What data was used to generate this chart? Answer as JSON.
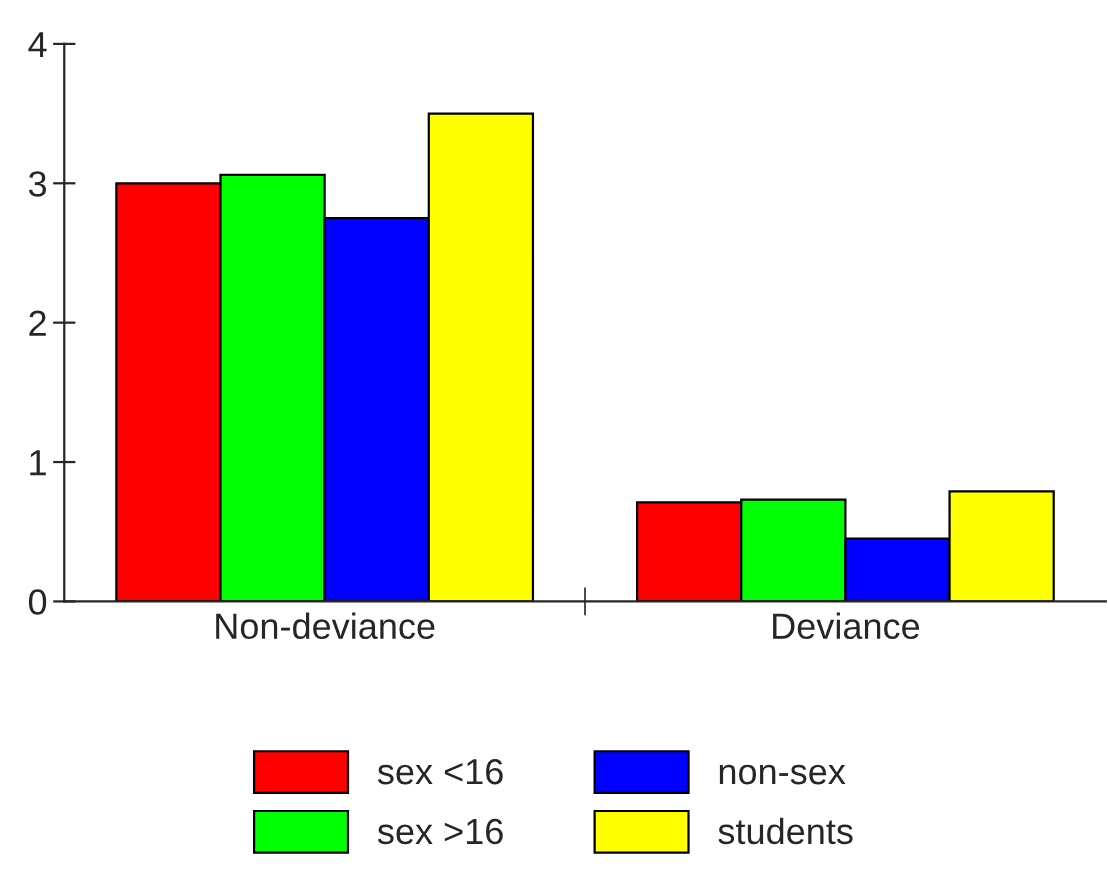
{
  "chart_data": {
    "type": "bar",
    "categories": [
      "Non-deviance",
      "Deviance"
    ],
    "series": [
      {
        "name": "sex <16",
        "color": "#ff0000",
        "values": [
          3.0,
          0.71
        ]
      },
      {
        "name": "sex >16",
        "color": "#00ff00",
        "values": [
          3.06,
          0.73
        ]
      },
      {
        "name": "non-sex",
        "color": "#0000ff",
        "values": [
          2.75,
          0.45
        ]
      },
      {
        "name": "students",
        "color": "#ffff00",
        "values": [
          3.5,
          0.79
        ]
      }
    ],
    "ylim": [
      0,
      4
    ],
    "yticks": [
      0,
      1,
      2,
      3,
      4
    ],
    "grid": false,
    "legend": "bottom"
  }
}
